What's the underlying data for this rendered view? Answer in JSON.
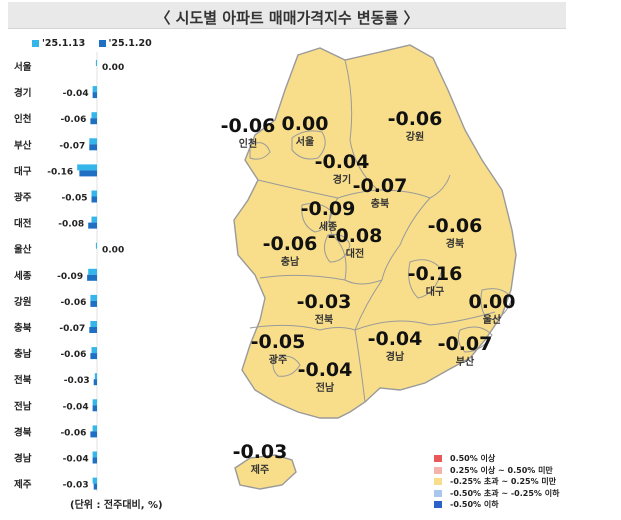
{
  "title": "〈 시도별 아파트 매매가격지수 변동률 〉",
  "legend": {
    "prev": {
      "label": "'25.1.13",
      "color": "#35b6ea"
    },
    "curr": {
      "label": "'25.1.20",
      "color": "#1f6fc2"
    }
  },
  "unit_note": "(단위 : 전주대비, %)",
  "chart_data": {
    "type": "bar",
    "orientation": "horizontal",
    "categories": [
      "서울",
      "경기",
      "인천",
      "부산",
      "대구",
      "광주",
      "대전",
      "울산",
      "세종",
      "강원",
      "충북",
      "충남",
      "전북",
      "전남",
      "경북",
      "경남",
      "제주"
    ],
    "series": [
      {
        "name": "'25.1.13",
        "values": [
          -0.01,
          -0.04,
          -0.05,
          -0.07,
          -0.18,
          -0.05,
          -0.05,
          -0.01,
          -0.08,
          -0.06,
          -0.06,
          -0.05,
          -0.02,
          -0.04,
          -0.04,
          -0.04,
          -0.04
        ]
      },
      {
        "name": "'25.1.20",
        "values": [
          0.0,
          -0.04,
          -0.06,
          -0.07,
          -0.16,
          -0.05,
          -0.08,
          0.0,
          -0.09,
          -0.06,
          -0.07,
          -0.06,
          -0.03,
          -0.04,
          -0.06,
          -0.04,
          -0.03
        ]
      }
    ],
    "data_labels": [
      "0.00",
      "-0.04",
      "-0.06",
      "-0.07",
      "-0.16",
      "-0.05",
      "-0.08",
      "0.00",
      "-0.09",
      "-0.06",
      "-0.07",
      "-0.06",
      "-0.03",
      "-0.04",
      "-0.06",
      "-0.04",
      "-0.03"
    ]
  },
  "map": {
    "regions": [
      {
        "name": "인천",
        "value": "-0.06"
      },
      {
        "name": "서울",
        "value": "0.00"
      },
      {
        "name": "강원",
        "value": "-0.06"
      },
      {
        "name": "경기",
        "value": "-0.04"
      },
      {
        "name": "충북",
        "value": "-0.07"
      },
      {
        "name": "세종",
        "value": "-0.09"
      },
      {
        "name": "대전",
        "value": "-0.08"
      },
      {
        "name": "충남",
        "value": "-0.06"
      },
      {
        "name": "경북",
        "value": "-0.06"
      },
      {
        "name": "대구",
        "value": "-0.16"
      },
      {
        "name": "울산",
        "value": "0.00"
      },
      {
        "name": "전북",
        "value": "-0.03"
      },
      {
        "name": "경남",
        "value": "-0.04"
      },
      {
        "name": "부산",
        "value": "-0.07"
      },
      {
        "name": "광주",
        "value": "-0.05"
      },
      {
        "name": "전남",
        "value": "-0.04"
      },
      {
        "name": "제주",
        "value": "-0.03"
      }
    ],
    "fill_color": "#f8de8a",
    "border_color": "#9a9a9a"
  },
  "map_legend": [
    {
      "label": "0.50% 이상",
      "color": "#e8575a"
    },
    {
      "label": "0.25% 이상 ~ 0.50% 미만",
      "color": "#f5b1ad"
    },
    {
      "label": "-0.25% 초과 ~ 0.25% 미만",
      "color": "#f8de8a"
    },
    {
      "label": "-0.50% 초과 ~ -0.25% 이하",
      "color": "#a9c6ec"
    },
    {
      "label": "-0.50% 이하",
      "color": "#2c61c8"
    }
  ]
}
